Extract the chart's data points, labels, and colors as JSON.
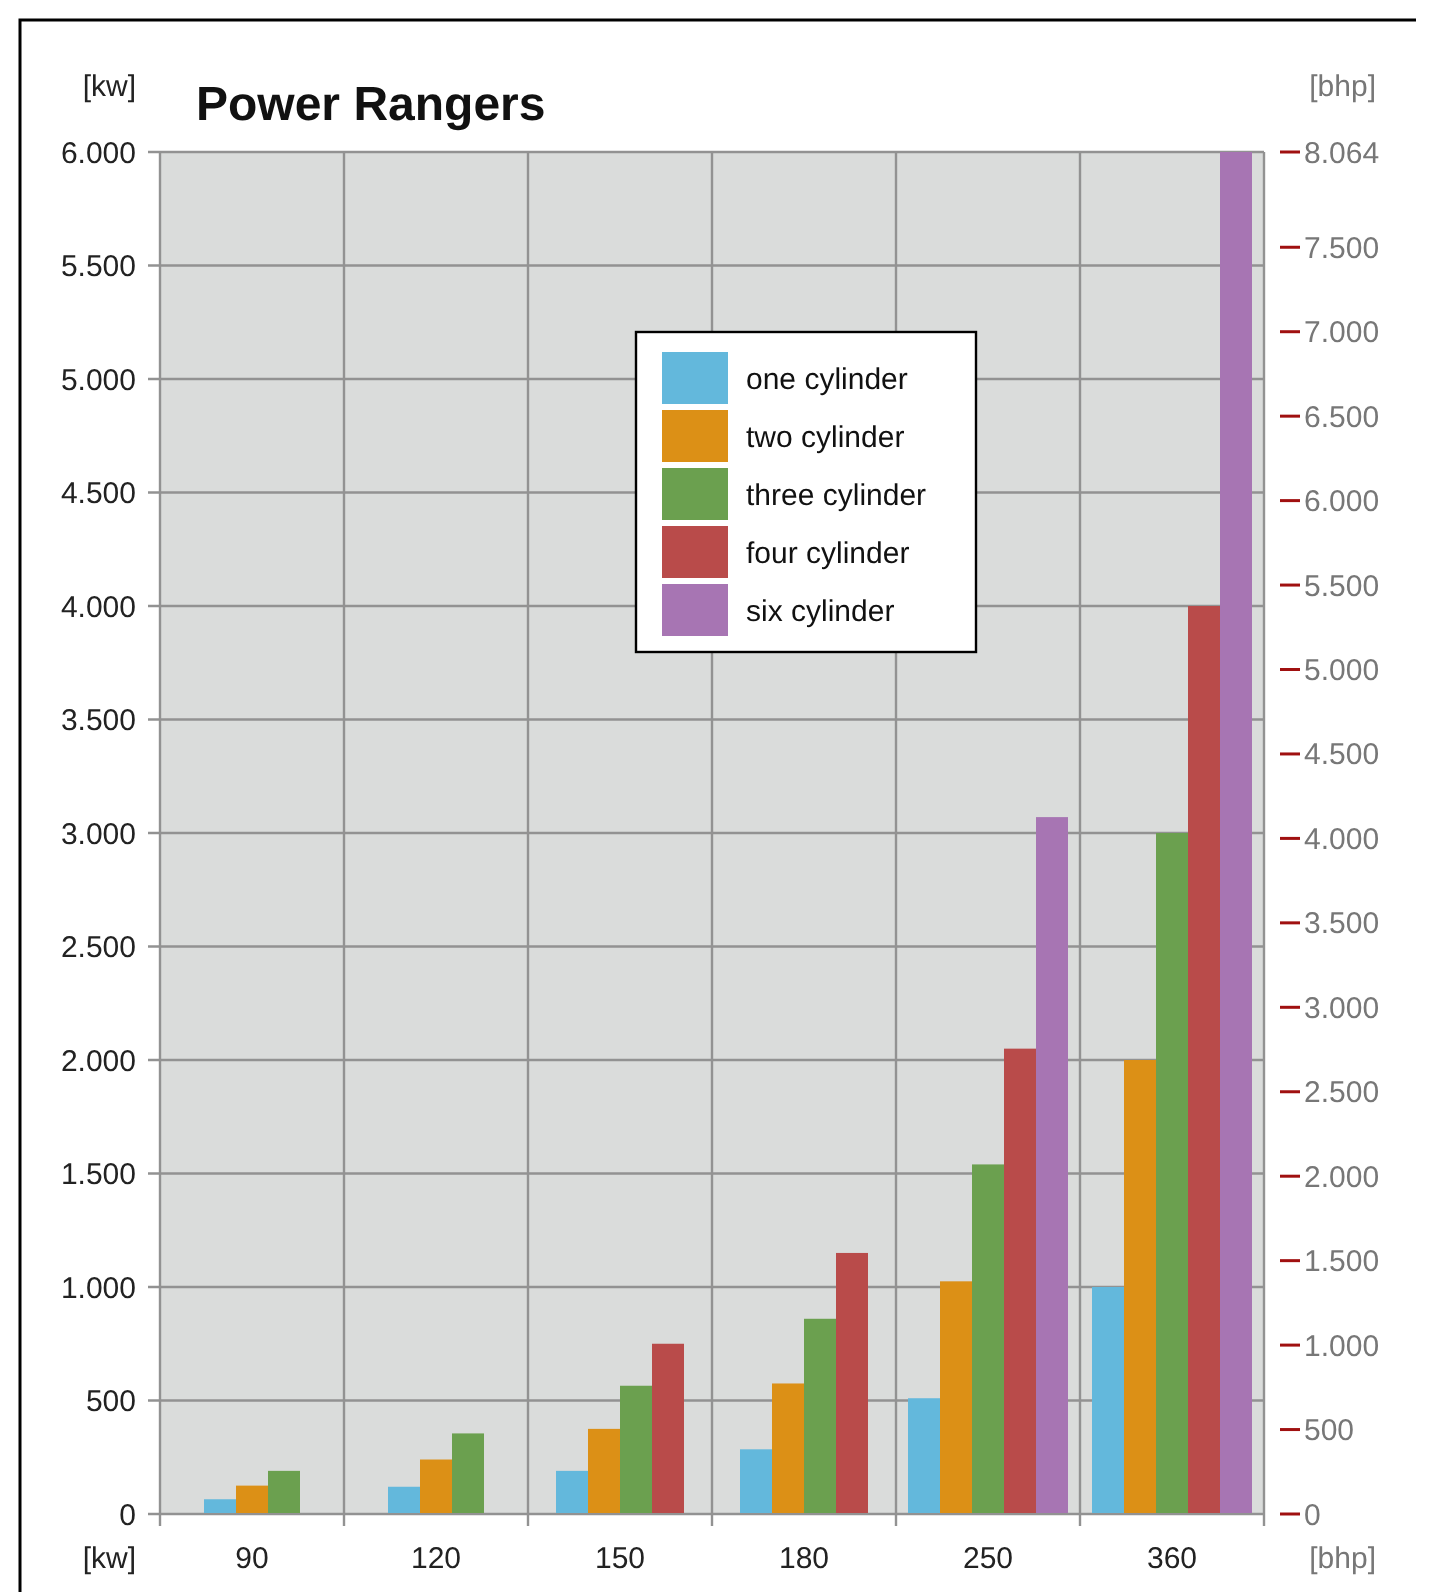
{
  "chart_data": {
    "type": "bar",
    "title": "Power Rangers",
    "ylabel": "[kw]",
    "y2label": "[bhp]",
    "annotations": [
      "[kw]",
      "[bhp]"
    ],
    "categories": [
      "90",
      "120",
      "150",
      "180",
      "250",
      "360"
    ],
    "series": [
      {
        "name": "one cylinder",
        "color": "#63b8dc",
        "values": [
          65,
          120,
          190,
          285,
          510,
          1000
        ]
      },
      {
        "name": "two cylinder",
        "color": "#dc9016",
        "values": [
          125,
          240,
          375,
          575,
          1025,
          2000
        ]
      },
      {
        "name": "three cylinder",
        "color": "#6ba04f",
        "values": [
          190,
          355,
          565,
          860,
          1540,
          3000
        ]
      },
      {
        "name": "four cylinder",
        "color": "#b94b4a",
        "values": [
          null,
          null,
          750,
          1150,
          2050,
          4000
        ]
      },
      {
        "name": "six cylinder",
        "color": "#a775b3",
        "values": [
          null,
          null,
          null,
          null,
          3070,
          6000
        ]
      }
    ],
    "ylim": [
      0,
      6000
    ],
    "yticks": [
      0,
      500,
      {
        "value": 1000,
        "label": "1.000"
      },
      {
        "value": 1500,
        "label": "1.500"
      },
      {
        "value": 2000,
        "label": "2.000"
      },
      {
        "value": 2500,
        "label": "2.500"
      },
      {
        "value": 3000,
        "label": "3.000"
      },
      {
        "value": 3500,
        "label": "3.500"
      },
      {
        "value": 4000,
        "label": "4.000"
      },
      {
        "value": 4500,
        "label": "4.500"
      },
      {
        "value": 5000,
        "label": "5.000"
      },
      {
        "value": 5500,
        "label": "5.500"
      },
      {
        "value": 6000,
        "label": "6.000"
      }
    ],
    "y2lim": [
      0,
      8064
    ],
    "y2ticks": [
      0,
      500,
      {
        "value": 1000,
        "label": "1.000"
      },
      {
        "value": 1500,
        "label": "1.500"
      },
      {
        "value": 2000,
        "label": "2.000"
      },
      {
        "value": 2500,
        "label": "2.500"
      },
      {
        "value": 3000,
        "label": "3.000"
      },
      {
        "value": 3500,
        "label": "3.500"
      },
      {
        "value": 4000,
        "label": "4.000"
      },
      {
        "value": 4500,
        "label": "4.500"
      },
      {
        "value": 5000,
        "label": "5.000"
      },
      {
        "value": 5500,
        "label": "5.500"
      },
      {
        "value": 6000,
        "label": "6.000"
      },
      {
        "value": 6500,
        "label": "6.500"
      },
      {
        "value": 7000,
        "label": "7.000"
      },
      {
        "value": 7500,
        "label": "7.500"
      },
      {
        "value": 8064,
        "label": "8.064"
      }
    ],
    "grid": true,
    "legend": "top"
  }
}
